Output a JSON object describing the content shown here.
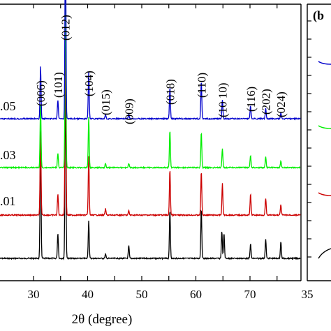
{
  "chart_data": [
    {
      "panel": "a",
      "type": "line",
      "xlabel": "2θ (degree)",
      "ylabel": "",
      "xlim": [
        10,
        80
      ],
      "xticks": [
        30,
        35,
        40,
        45,
        50,
        55,
        60,
        65,
        70,
        75
      ],
      "grid": false,
      "series": [
        {
          "name": "",
          "color": "#000000",
          "peaks": [
            {
              "x": 31.3,
              "rel": 0.58
            },
            {
              "x": 34.5,
              "rel": 0.12
            },
            {
              "x": 35.9,
              "rel": 0.92
            },
            {
              "x": 40.2,
              "rel": 0.18
            },
            {
              "x": 43.3,
              "rel": 0.02
            },
            {
              "x": 47.6,
              "rel": 0.06
            },
            {
              "x": 55.2,
              "rel": 0.23
            },
            {
              "x": 61.0,
              "rel": 0.24
            },
            {
              "x": 64.8,
              "rel": 0.13
            },
            {
              "x": 65.2,
              "rel": 0.12
            },
            {
              "x": 70.1,
              "rel": 0.07
            },
            {
              "x": 72.9,
              "rel": 0.09
            },
            {
              "x": 75.7,
              "rel": 0.08
            }
          ]
        },
        {
          "name": ".01",
          "color": "#cc0000",
          "peaks": [
            {
              "x": 31.3,
              "rel": 0.4
            },
            {
              "x": 34.5,
              "rel": 0.1
            },
            {
              "x": 35.9,
              "rel": 0.92
            },
            {
              "x": 40.2,
              "rel": 0.28
            },
            {
              "x": 43.3,
              "rel": 0.03
            },
            {
              "x": 47.6,
              "rel": 0.02
            },
            {
              "x": 55.2,
              "rel": 0.22
            },
            {
              "x": 61.0,
              "rel": 0.21
            },
            {
              "x": 64.9,
              "rel": 0.15
            },
            {
              "x": 70.1,
              "rel": 0.1
            },
            {
              "x": 72.9,
              "rel": 0.08
            },
            {
              "x": 75.7,
              "rel": 0.05
            }
          ]
        },
        {
          "name": ".03",
          "color": "#00ee00",
          "peaks": [
            {
              "x": 31.3,
              "rel": 0.3
            },
            {
              "x": 34.5,
              "rel": 0.07
            },
            {
              "x": 35.9,
              "rel": 0.92
            },
            {
              "x": 40.2,
              "rel": 0.24
            },
            {
              "x": 43.3,
              "rel": 0.02
            },
            {
              "x": 47.6,
              "rel": 0.02
            },
            {
              "x": 55.2,
              "rel": 0.18
            },
            {
              "x": 61.0,
              "rel": 0.17
            },
            {
              "x": 64.9,
              "rel": 0.09
            },
            {
              "x": 70.1,
              "rel": 0.06
            },
            {
              "x": 72.9,
              "rel": 0.05
            },
            {
              "x": 75.7,
              "rel": 0.03
            }
          ]
        },
        {
          "name": ".05",
          "color": "#0000cc",
          "peaks": [
            {
              "x": 31.3,
              "rel": 0.25
            },
            {
              "x": 34.5,
              "rel": 0.09
            },
            {
              "x": 35.9,
              "rel": 0.92
            },
            {
              "x": 40.2,
              "rel": 0.22
            },
            {
              "x": 43.3,
              "rel": 0.02
            },
            {
              "x": 47.6,
              "rel": 0.02
            },
            {
              "x": 55.2,
              "rel": 0.15
            },
            {
              "x": 61.0,
              "rel": 0.18
            },
            {
              "x": 64.9,
              "rel": 0.09
            },
            {
              "x": 70.1,
              "rel": 0.06
            },
            {
              "x": 72.9,
              "rel": 0.05
            },
            {
              "x": 75.7,
              "rel": 0.03
            }
          ]
        }
      ],
      "annotations": [
        {
          "text": "(006)",
          "x": 31.3
        },
        {
          "text": "(101)",
          "x": 34.5
        },
        {
          "text": "(012)",
          "x": 35.9
        },
        {
          "text": "(104)",
          "x": 40.2
        },
        {
          "text": "(015)",
          "x": 43.3
        },
        {
          "text": "(009)",
          "x": 47.6
        },
        {
          "text": "(018)",
          "x": 55.2
        },
        {
          "text": "(110)",
          "x": 61.0
        },
        {
          "text": "(10 10)",
          "x": 64.9
        },
        {
          "text": "(116)",
          "x": 70.1
        },
        {
          "text": "(202)",
          "x": 72.9
        },
        {
          "text": "(024)",
          "x": 75.7
        }
      ]
    },
    {
      "panel": "b",
      "type": "line",
      "panel_label": "(b",
      "xticks": [
        35
      ],
      "series": [
        {
          "name": "",
          "color": "#0000cc"
        },
        {
          "name": "",
          "color": "#00ee00"
        },
        {
          "name": "",
          "color": "#cc0000"
        },
        {
          "name": "",
          "color": "#000000"
        }
      ]
    }
  ]
}
